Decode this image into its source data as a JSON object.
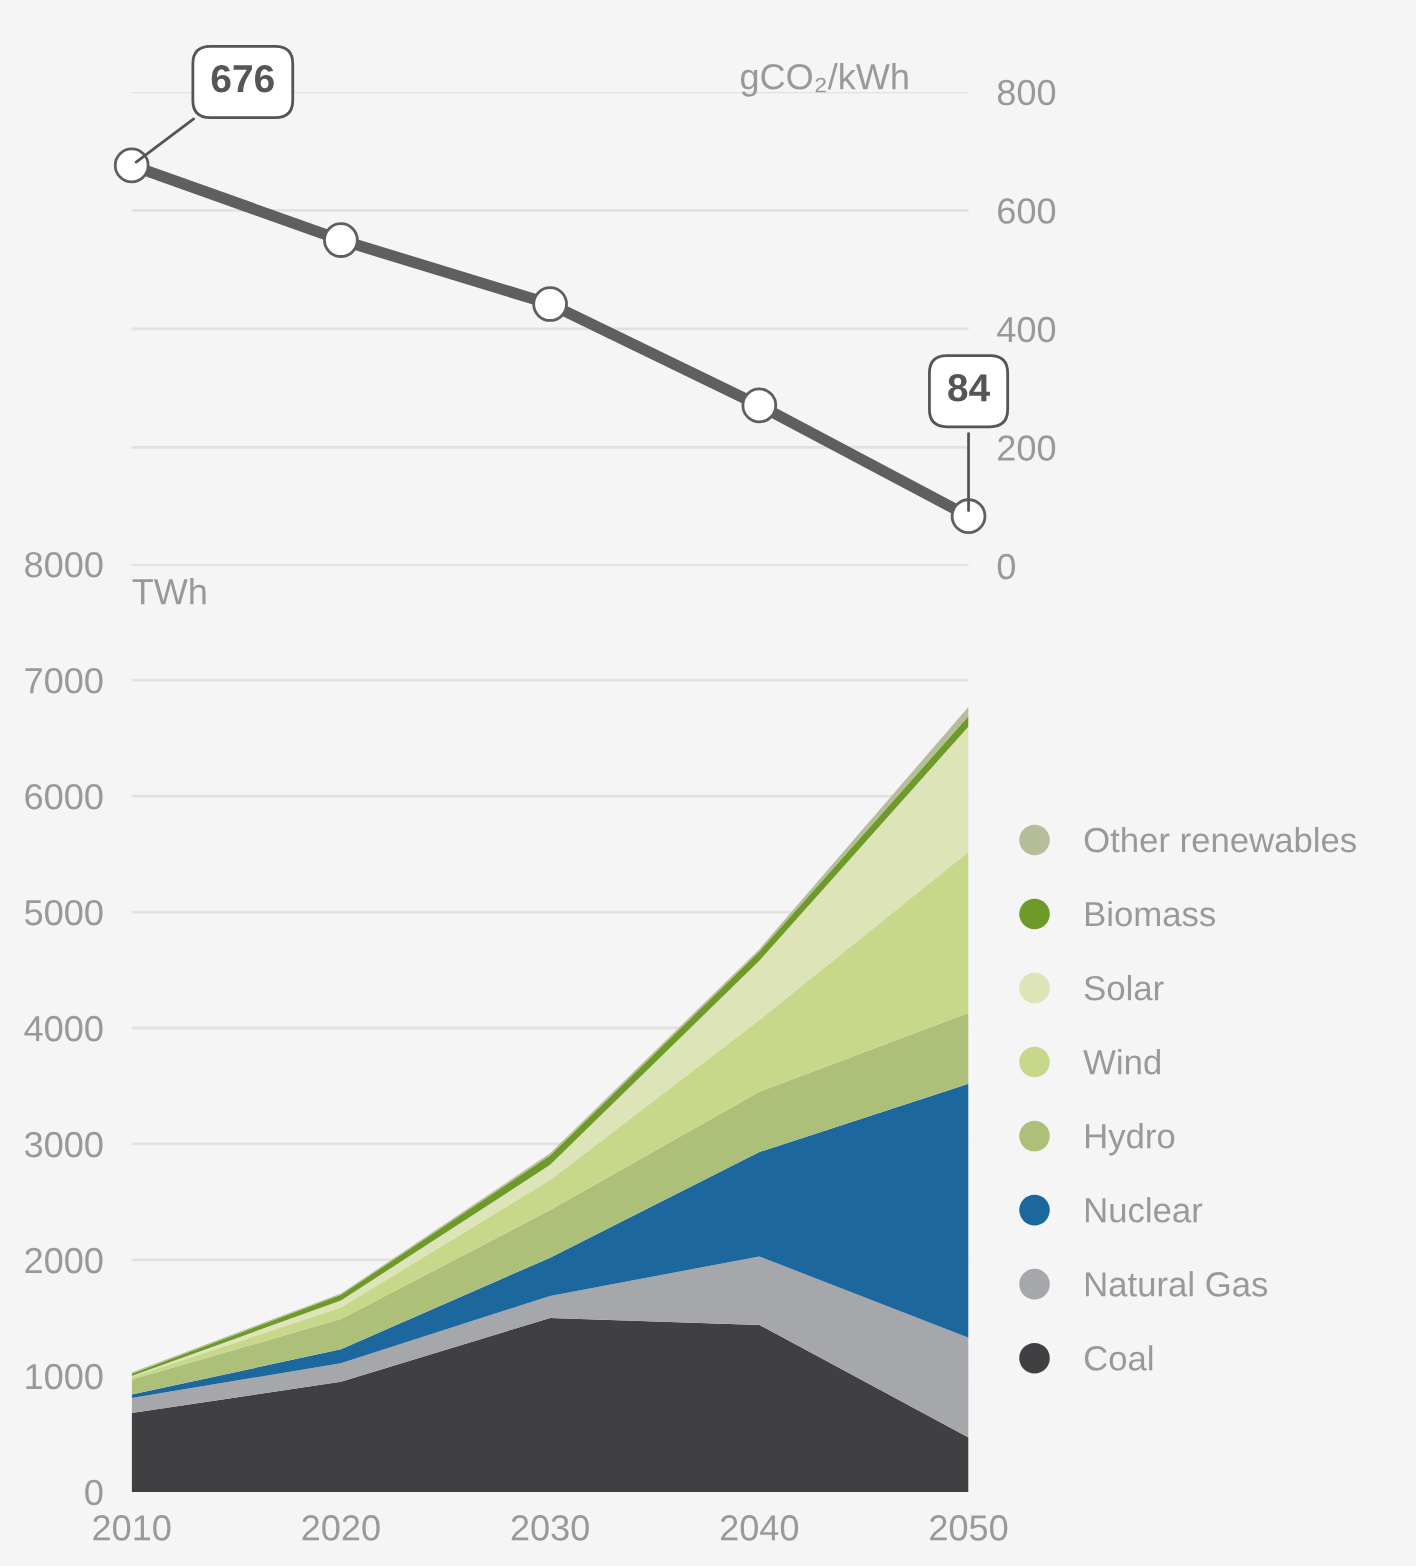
{
  "chart_data": [
    {
      "type": "line",
      "ylabel": "gCO₂/kWh",
      "x": [
        2010,
        2020,
        2030,
        2040,
        2050
      ],
      "xlim": [
        2010,
        2050
      ],
      "ylim": [
        0,
        800
      ],
      "yticks": [
        0,
        200,
        400,
        600,
        800
      ],
      "grid": "y",
      "tick_labels": "y",
      "marker": "circle",
      "line_style": "solid",
      "series": [
        {
          "color": "#5f5f5f",
          "values": [
            676,
            550,
            442,
            271,
            84
          ],
          "value_labels": [
            "676",
            null,
            null,
            null,
            "84"
          ]
        }
      ]
    },
    {
      "type": "area",
      "stacked": true,
      "ylabel": "TWh",
      "x": [
        2010,
        2020,
        2030,
        2040,
        2050
      ],
      "xlim": [
        2010,
        2050
      ],
      "xticks": [
        2010,
        2020,
        2030,
        2040,
        2050
      ],
      "ylim": [
        0,
        8000
      ],
      "yticks": [
        0,
        1000,
        2000,
        3000,
        4000,
        5000,
        6000,
        7000,
        8000
      ],
      "grid": "y",
      "legend": "right",
      "series": [
        {
          "name": "Coal",
          "color": "#404042",
          "values": [
            680,
            950,
            1500,
            1440,
            470
          ]
        },
        {
          "name": "Natural Gas",
          "color": "#a6a7aa",
          "values": [
            130,
            160,
            190,
            590,
            860
          ]
        },
        {
          "name": "Nuclear",
          "color": "#1c689e",
          "values": [
            30,
            120,
            330,
            900,
            2190
          ]
        },
        {
          "name": "Hydro",
          "color": "#adc07a",
          "values": [
            130,
            260,
            410,
            520,
            610
          ]
        },
        {
          "name": "Wind",
          "color": "#c8d88a",
          "values": [
            20,
            100,
            260,
            620,
            1390
          ]
        },
        {
          "name": "Solar",
          "color": "#dce4b8",
          "values": [
            10,
            60,
            130,
            510,
            1080
          ]
        },
        {
          "name": "Biomass",
          "color": "#6e9a2a",
          "values": [
            20,
            50,
            80,
            80,
            90
          ]
        },
        {
          "name": "Other renewables",
          "color": "#b5bd9b",
          "values": [
            10,
            10,
            20,
            20,
            80
          ]
        }
      ]
    }
  ]
}
